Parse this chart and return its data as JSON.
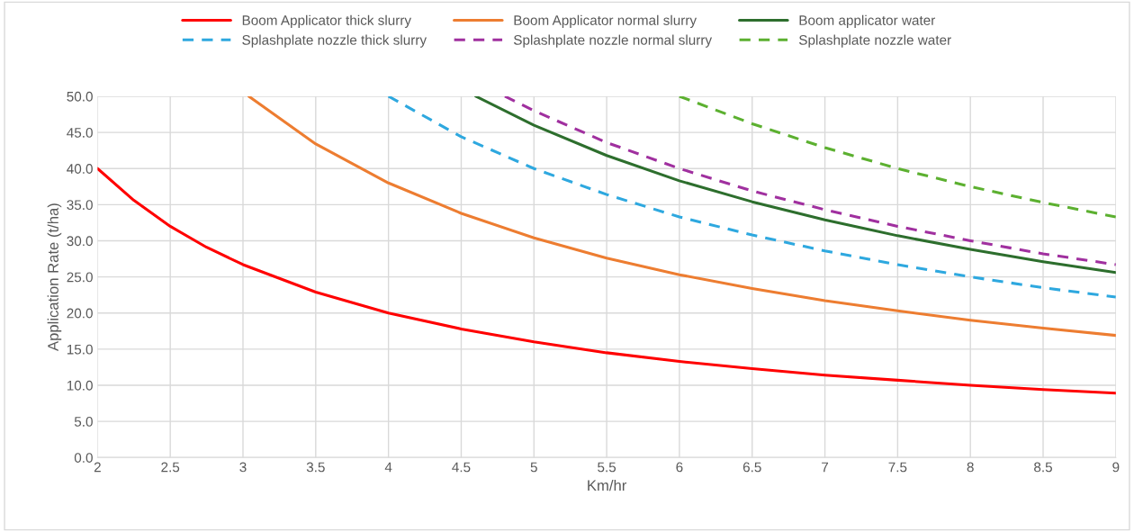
{
  "chart_data": {
    "type": "line",
    "xlabel": "Km/hr",
    "ylabel": "Application Rate (t/ha)",
    "xlim": [
      2,
      9
    ],
    "ylim": [
      0,
      50
    ],
    "xticks": [
      2,
      2.5,
      3,
      3.5,
      4,
      4.5,
      5,
      5.5,
      6,
      6.5,
      7,
      7.5,
      8,
      8.5,
      9
    ],
    "yticks": [
      {
        "value": 0,
        "label": "0.0"
      },
      {
        "value": 5,
        "label": "5.0"
      },
      {
        "value": 10,
        "label": "10.0"
      },
      {
        "value": 15,
        "label": "15.0"
      },
      {
        "value": 20,
        "label": "20.0"
      },
      {
        "value": 25,
        "label": "25.0"
      },
      {
        "value": 30,
        "label": "30.0"
      },
      {
        "value": 35,
        "label": "35.0"
      },
      {
        "value": 40,
        "label": "40.0"
      },
      {
        "value": 45,
        "label": "45.0"
      },
      {
        "value": 50,
        "label": "50.0"
      }
    ],
    "grid": true,
    "legend": "top",
    "marker": "none",
    "series": [
      {
        "name": "Boom Applicator thick slurry",
        "color": "#ff0000",
        "line_style": "solid",
        "x": [
          2,
          2.25,
          2.5,
          2.75,
          3,
          3.5,
          4,
          4.5,
          5,
          5.5,
          6,
          6.5,
          7,
          7.5,
          8,
          8.5,
          9
        ],
        "values": [
          40.0,
          35.6,
          32.0,
          29.1,
          26.7,
          22.9,
          20.0,
          17.8,
          16.0,
          14.5,
          13.3,
          12.3,
          11.4,
          10.7,
          10.0,
          9.4,
          8.9
        ]
      },
      {
        "name": "Boom Applicator normal slurry",
        "color": "#ed7d31",
        "line_style": "solid",
        "x": [
          3.04,
          3.5,
          4,
          4.5,
          5,
          5.5,
          6,
          6.5,
          7,
          7.5,
          8,
          8.5,
          9
        ],
        "values": [
          50.0,
          43.4,
          38.0,
          33.8,
          30.4,
          27.6,
          25.3,
          23.4,
          21.7,
          20.3,
          19.0,
          17.9,
          16.9
        ]
      },
      {
        "name": "Boom applicator water",
        "color": "#2d6e2d",
        "line_style": "solid",
        "x": [
          4.6,
          5,
          5.5,
          6,
          6.5,
          7,
          7.5,
          8,
          8.5,
          9
        ],
        "values": [
          50.0,
          46.0,
          41.8,
          38.3,
          35.4,
          32.9,
          30.7,
          28.8,
          27.1,
          25.6
        ]
      },
      {
        "name": "Splashplate nozzle thick slurry",
        "color": "#2ea8df",
        "line_style": "dashed",
        "x": [
          4,
          4.5,
          5,
          5.5,
          6,
          6.5,
          7,
          7.5,
          8,
          8.5,
          9
        ],
        "values": [
          50.0,
          44.4,
          40.0,
          36.4,
          33.3,
          30.8,
          28.6,
          26.7,
          25.0,
          23.5,
          22.2
        ]
      },
      {
        "name": "Splashplate nozzle normal slurry",
        "color": "#a0309f",
        "line_style": "dashed",
        "x": [
          4.8,
          5,
          5.5,
          6,
          6.5,
          7,
          7.5,
          8,
          8.5,
          9
        ],
        "values": [
          50.0,
          48.0,
          43.6,
          40.0,
          36.9,
          34.3,
          32.0,
          30.0,
          28.2,
          26.7
        ]
      },
      {
        "name": "Splashplate nozzle water",
        "color": "#5cb030",
        "line_style": "dashed",
        "x": [
          6,
          6.5,
          7,
          7.5,
          8,
          8.5,
          9
        ],
        "values": [
          50.0,
          46.2,
          42.9,
          40.0,
          37.5,
          35.3,
          33.3
        ]
      }
    ]
  }
}
